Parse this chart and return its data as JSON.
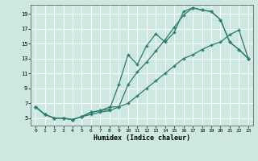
{
  "xlabel": "Humidex (Indice chaleur)",
  "bg_color": "#cce8e0",
  "grid_color": "#ffffff",
  "line_color": "#2d7a6e",
  "xlim": [
    -0.5,
    23.5
  ],
  "ylim": [
    4,
    20.2
  ],
  "xticks": [
    0,
    1,
    2,
    3,
    4,
    5,
    6,
    7,
    8,
    9,
    10,
    11,
    12,
    13,
    14,
    15,
    16,
    17,
    18,
    19,
    20,
    21,
    22,
    23
  ],
  "yticks": [
    5,
    7,
    9,
    11,
    13,
    15,
    17,
    19
  ],
  "line1_x": [
    0,
    1,
    2,
    3,
    4,
    5,
    6,
    7,
    8,
    9,
    10,
    11,
    12,
    13,
    14,
    15,
    16,
    17,
    18,
    19,
    20,
    21,
    22,
    23
  ],
  "line1_y": [
    6.5,
    5.5,
    5.0,
    5.0,
    4.8,
    5.2,
    5.8,
    6.0,
    6.2,
    9.5,
    13.5,
    12.2,
    14.7,
    16.3,
    15.2,
    16.5,
    19.3,
    19.8,
    19.5,
    19.3,
    18.2,
    15.2,
    14.2,
    13.0
  ],
  "line2_x": [
    0,
    1,
    2,
    3,
    4,
    5,
    6,
    7,
    8,
    9,
    10,
    11,
    12,
    13,
    14,
    15,
    16,
    17,
    18,
    19,
    20,
    21,
    22,
    23
  ],
  "line2_y": [
    6.5,
    5.5,
    5.0,
    5.0,
    4.8,
    5.2,
    5.8,
    6.0,
    6.5,
    6.5,
    9.5,
    11.2,
    12.5,
    14.0,
    15.5,
    17.2,
    18.8,
    19.8,
    19.5,
    19.3,
    18.2,
    15.2,
    14.2,
    13.0
  ],
  "line3_x": [
    0,
    1,
    2,
    3,
    4,
    5,
    6,
    7,
    8,
    9,
    10,
    11,
    12,
    13,
    14,
    15,
    16,
    17,
    18,
    19,
    20,
    21,
    22,
    23
  ],
  "line3_y": [
    6.5,
    5.5,
    5.0,
    5.0,
    4.8,
    5.2,
    5.5,
    5.8,
    6.0,
    6.5,
    7.0,
    8.0,
    9.0,
    10.0,
    11.0,
    12.0,
    13.0,
    13.5,
    14.2,
    14.8,
    15.2,
    16.2,
    16.8,
    13.0
  ]
}
